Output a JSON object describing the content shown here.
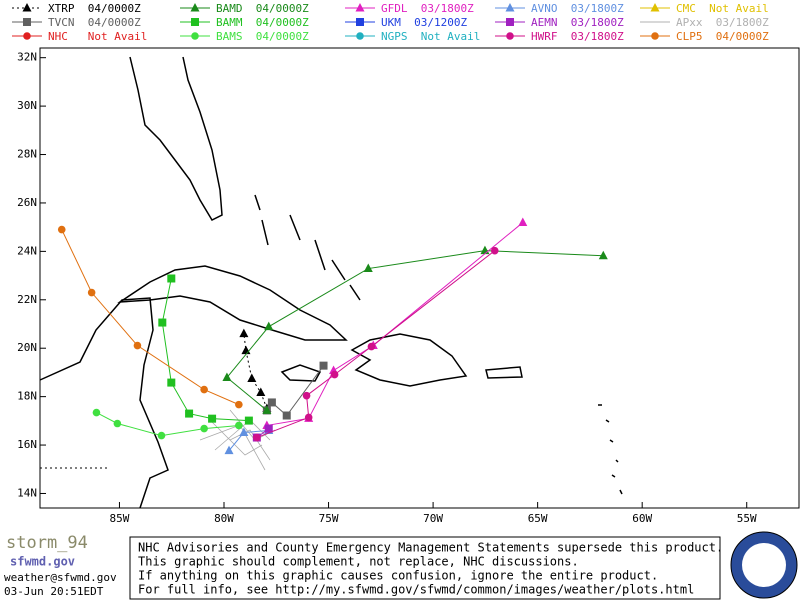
{
  "chart_data": {
    "type": "line",
    "xlim": [
      -88.8,
      -52.5
    ],
    "ylim": [
      13.4,
      32.4
    ],
    "xticks": [
      {
        "value": -85,
        "label": "85W"
      },
      {
        "value": -80,
        "label": "80W"
      },
      {
        "value": -75,
        "label": "75W"
      },
      {
        "value": -70,
        "label": "70W"
      },
      {
        "value": -65,
        "label": "65W"
      },
      {
        "value": -60,
        "label": "60W"
      },
      {
        "value": -55,
        "label": "55W"
      }
    ],
    "yticks": [
      {
        "value": 14,
        "label": "14N"
      },
      {
        "value": 16,
        "label": "16N"
      },
      {
        "value": 18,
        "label": "18N"
      },
      {
        "value": 20,
        "label": "20N"
      },
      {
        "value": 22,
        "label": "22N"
      },
      {
        "value": 24,
        "label": "24N"
      },
      {
        "value": 26,
        "label": "26N"
      },
      {
        "value": 28,
        "label": "28N"
      },
      {
        "value": 30,
        "label": "30N"
      },
      {
        "value": 32,
        "label": "32N"
      }
    ],
    "series": [
      {
        "name": "XTRP  04/0000Z",
        "color": "#000000",
        "marker": "triangle",
        "dash": true,
        "x": [
          -77.95,
          -78.24,
          -78.67,
          -78.95,
          -79.05
        ],
        "values": [
          17.51,
          18.17,
          18.75,
          19.9,
          20.6
        ]
      },
      {
        "name": "TVCN  04/0000Z",
        "color": "#606060",
        "marker": "square",
        "x": [
          -77.95,
          -77.71,
          -77.0,
          -75.24
        ],
        "values": [
          17.43,
          17.76,
          17.22,
          19.28
        ]
      },
      {
        "name": "NHC   Not Avail",
        "color": "#e02020",
        "marker": "circle",
        "x": [],
        "values": []
      },
      {
        "name": "BAMD  04/0000Z",
        "color": "#1a8a1a",
        "marker": "triangle",
        "x": [
          -77.95,
          -79.86,
          -77.86,
          -73.1,
          -67.52,
          -61.86
        ],
        "values": [
          17.43,
          18.79,
          20.89,
          23.29,
          24.03,
          23.82
        ]
      },
      {
        "name": "BAMM  04/0000Z",
        "color": "#20c020",
        "marker": "square",
        "x": [
          -78.81,
          -80.57,
          -81.67,
          -82.52,
          -82.95,
          -82.52
        ],
        "values": [
          17.01,
          17.09,
          17.3,
          18.58,
          21.06,
          22.88
        ]
      },
      {
        "name": "BAMS  04/0000Z",
        "color": "#40e040",
        "marker": "circle",
        "x": [
          -79.29,
          -80.95,
          -82.99,
          -85.1,
          -86.1
        ],
        "values": [
          16.81,
          16.68,
          16.39,
          16.89,
          17.34
        ]
      },
      {
        "name": "GFDL  03/1800Z",
        "color": "#e020c0",
        "marker": "triangle",
        "x": [
          -77.95,
          -75.95,
          -74.76,
          -72.86,
          -65.71
        ],
        "values": [
          16.81,
          17.1,
          19.08,
          20.11,
          25.19
        ]
      },
      {
        "name": "UKM  03/1200Z",
        "color": "#2040e0",
        "marker": "square",
        "x": [],
        "values": []
      },
      {
        "name": "NGPS  Not Avail",
        "color": "#20b0c0",
        "marker": "circle",
        "x": [],
        "values": []
      },
      {
        "name": "AVNO  03/1800Z",
        "color": "#6090e0",
        "marker": "triangle",
        "x": [
          -79.76,
          -79.05,
          -77.86
        ],
        "values": [
          15.77,
          16.52,
          16.6
        ]
      },
      {
        "name": "AEMN  03/1800Z",
        "color": "#a020c0",
        "marker": "square",
        "x": [
          -78.43,
          -77.86
        ],
        "values": [
          16.31,
          16.68
        ]
      },
      {
        "name": "HWRF  03/1800Z",
        "color": "#d0108a",
        "marker": "circle",
        "x": [
          -78.43,
          -75.95,
          -76.05,
          -74.71,
          -72.95,
          -67.05
        ],
        "values": [
          16.31,
          17.14,
          18.04,
          18.91,
          20.07,
          24.03
        ]
      },
      {
        "name": "CMC  Not Avail",
        "color": "#e0c000",
        "marker": "triangle",
        "x": [],
        "values": []
      },
      {
        "name": "APxx  03/1800Z",
        "color": "#b0b0b0",
        "marker": "none",
        "x": [],
        "values": []
      },
      {
        "name": "CLP5  04/0000Z",
        "color": "#e07010",
        "marker": "circle",
        "x": [
          -87.76,
          -86.33,
          -84.14,
          -80.95,
          -79.29
        ],
        "values": [
          24.9,
          22.3,
          20.11,
          18.29,
          17.67
        ]
      }
    ]
  },
  "footer": {
    "storm": "storm_94",
    "site": "sfwmd.gov",
    "email": "weather@sfwmd.gov",
    "time": "03-Jun 20:51EDT",
    "disclaimer": [
      "NHC Advisories and County Emergency Management Statements supersede this product.",
      "This graphic should complement, not replace, NHC discussions.",
      "If anything on this graphic causes confusion, ignore the entire product.",
      "For full info, see  http://my.sfwmd.gov/sfwmd/common/images/weather/plots.html"
    ]
  }
}
